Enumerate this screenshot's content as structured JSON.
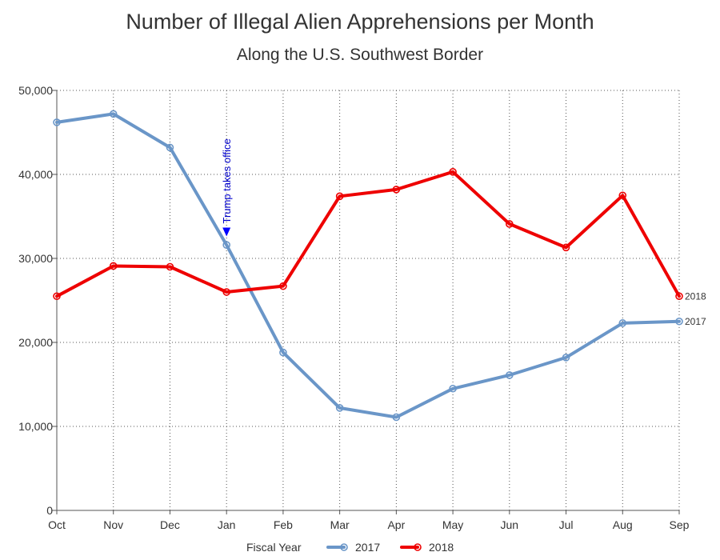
{
  "chart_data": {
    "type": "line",
    "title": "Number of Illegal Alien Apprehensions per Month",
    "subtitle": "Along the U.S. Southwest Border",
    "xlabel": "",
    "ylabel": "",
    "categories": [
      "Oct",
      "Nov",
      "Dec",
      "Jan",
      "Feb",
      "Mar",
      "Apr",
      "May",
      "Jun",
      "Jul",
      "Aug",
      "Sep"
    ],
    "ylim": [
      0,
      50000
    ],
    "yticks": [
      0,
      10000,
      20000,
      30000,
      40000,
      50000
    ],
    "ytick_labels": [
      "0",
      "10,000",
      "20,000",
      "30,000",
      "40,000",
      "50,000"
    ],
    "grid": true,
    "legend": {
      "title": "Fiscal Year",
      "placement": "bottom"
    },
    "series": [
      {
        "name": "2017",
        "color": "#6a96c8",
        "values": [
          46200,
          47200,
          43200,
          31600,
          18800,
          12200,
          11100,
          14500,
          16100,
          18200,
          22300,
          22500
        ]
      },
      {
        "name": "2018",
        "color": "#ee0000",
        "values": [
          25500,
          29100,
          29000,
          26000,
          26700,
          37400,
          38200,
          40300,
          34100,
          31300,
          37500,
          25500
        ]
      }
    ],
    "annotations": [
      {
        "text": "Trump takes office",
        "x": "Jan",
        "y": 33000,
        "color": "#0000cc"
      }
    ]
  }
}
